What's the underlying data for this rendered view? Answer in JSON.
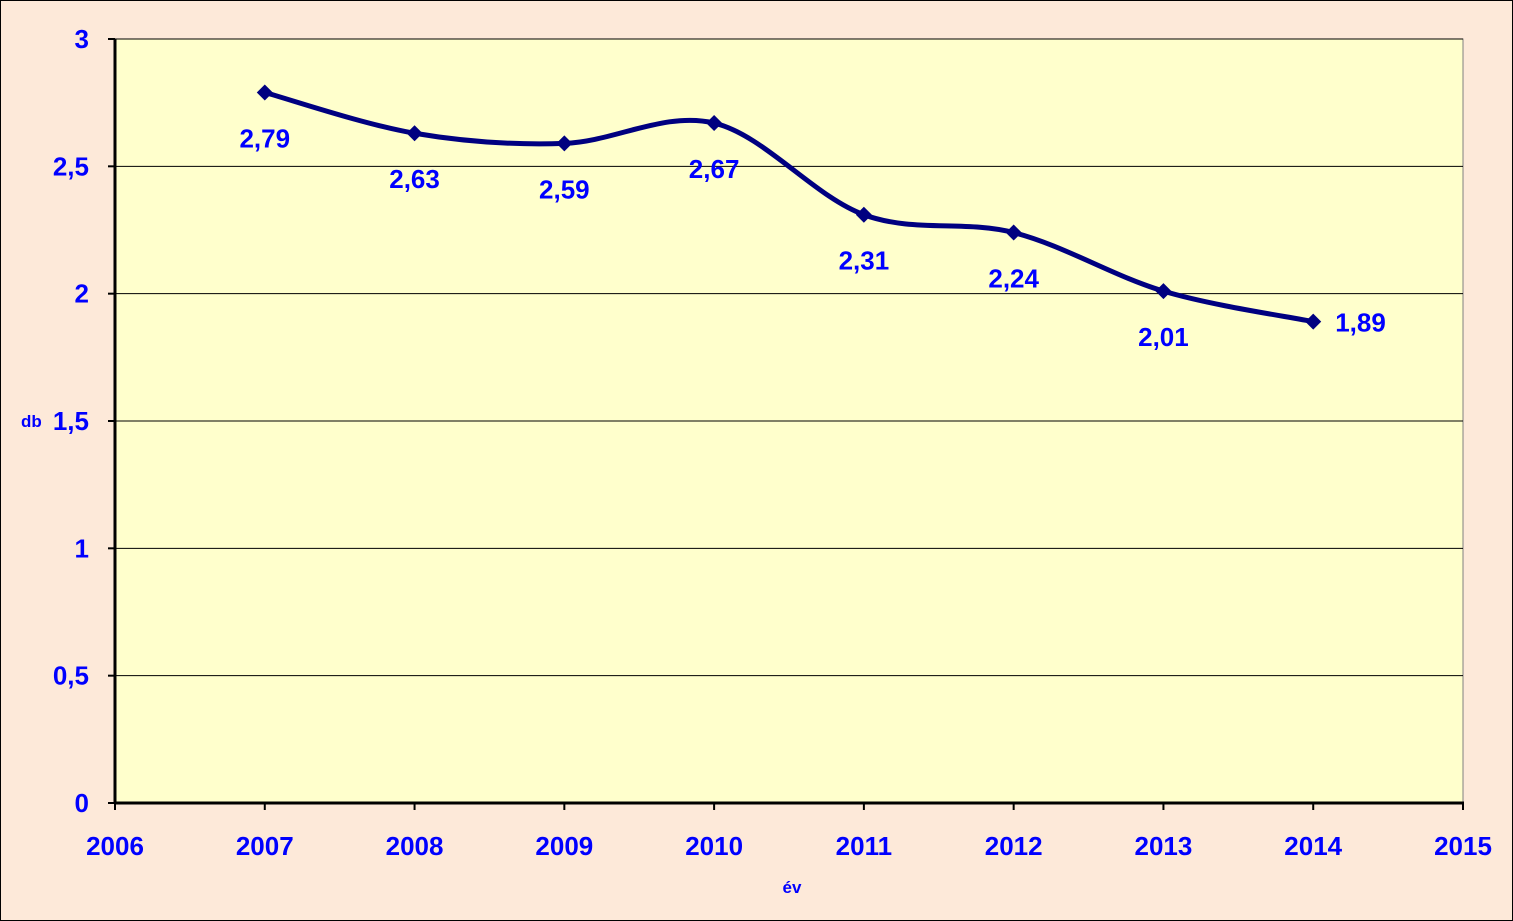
{
  "colors": {
    "chart_area": "#FDE9D9",
    "plot_area": "#FFFFCC",
    "text": "#0000FF",
    "series_line": "#000080",
    "gridline": "#000000"
  },
  "chart_data": {
    "type": "line",
    "title": "",
    "xlabel": "év",
    "ylabel": "db",
    "xlim": [
      2006,
      2015
    ],
    "ylim": [
      0,
      3
    ],
    "x_ticks": [
      2006,
      2007,
      2008,
      2009,
      2010,
      2011,
      2012,
      2013,
      2014,
      2015
    ],
    "y_ticks": [
      0,
      0.5,
      1,
      1.5,
      2,
      2.5,
      3
    ],
    "y_tick_labels": [
      "0",
      "0,5",
      "1",
      "1,5",
      "2",
      "2,5",
      "3"
    ],
    "grid": "horizontal major gridlines",
    "legend": "none",
    "smoothed": true,
    "marker": "diamond",
    "series": [
      {
        "x": [
          2007,
          2008,
          2009,
          2010,
          2011,
          2012,
          2013,
          2014
        ],
        "values": [
          2.79,
          2.63,
          2.59,
          2.67,
          2.31,
          2.24,
          2.01,
          1.89
        ],
        "labels": [
          "2,79",
          "2,63",
          "2,59",
          "2,67",
          "2,31",
          "2,24",
          "2,01",
          "1,89"
        ],
        "label_position": [
          "below",
          "below",
          "below",
          "below",
          "below",
          "below",
          "below",
          "right"
        ]
      }
    ]
  }
}
